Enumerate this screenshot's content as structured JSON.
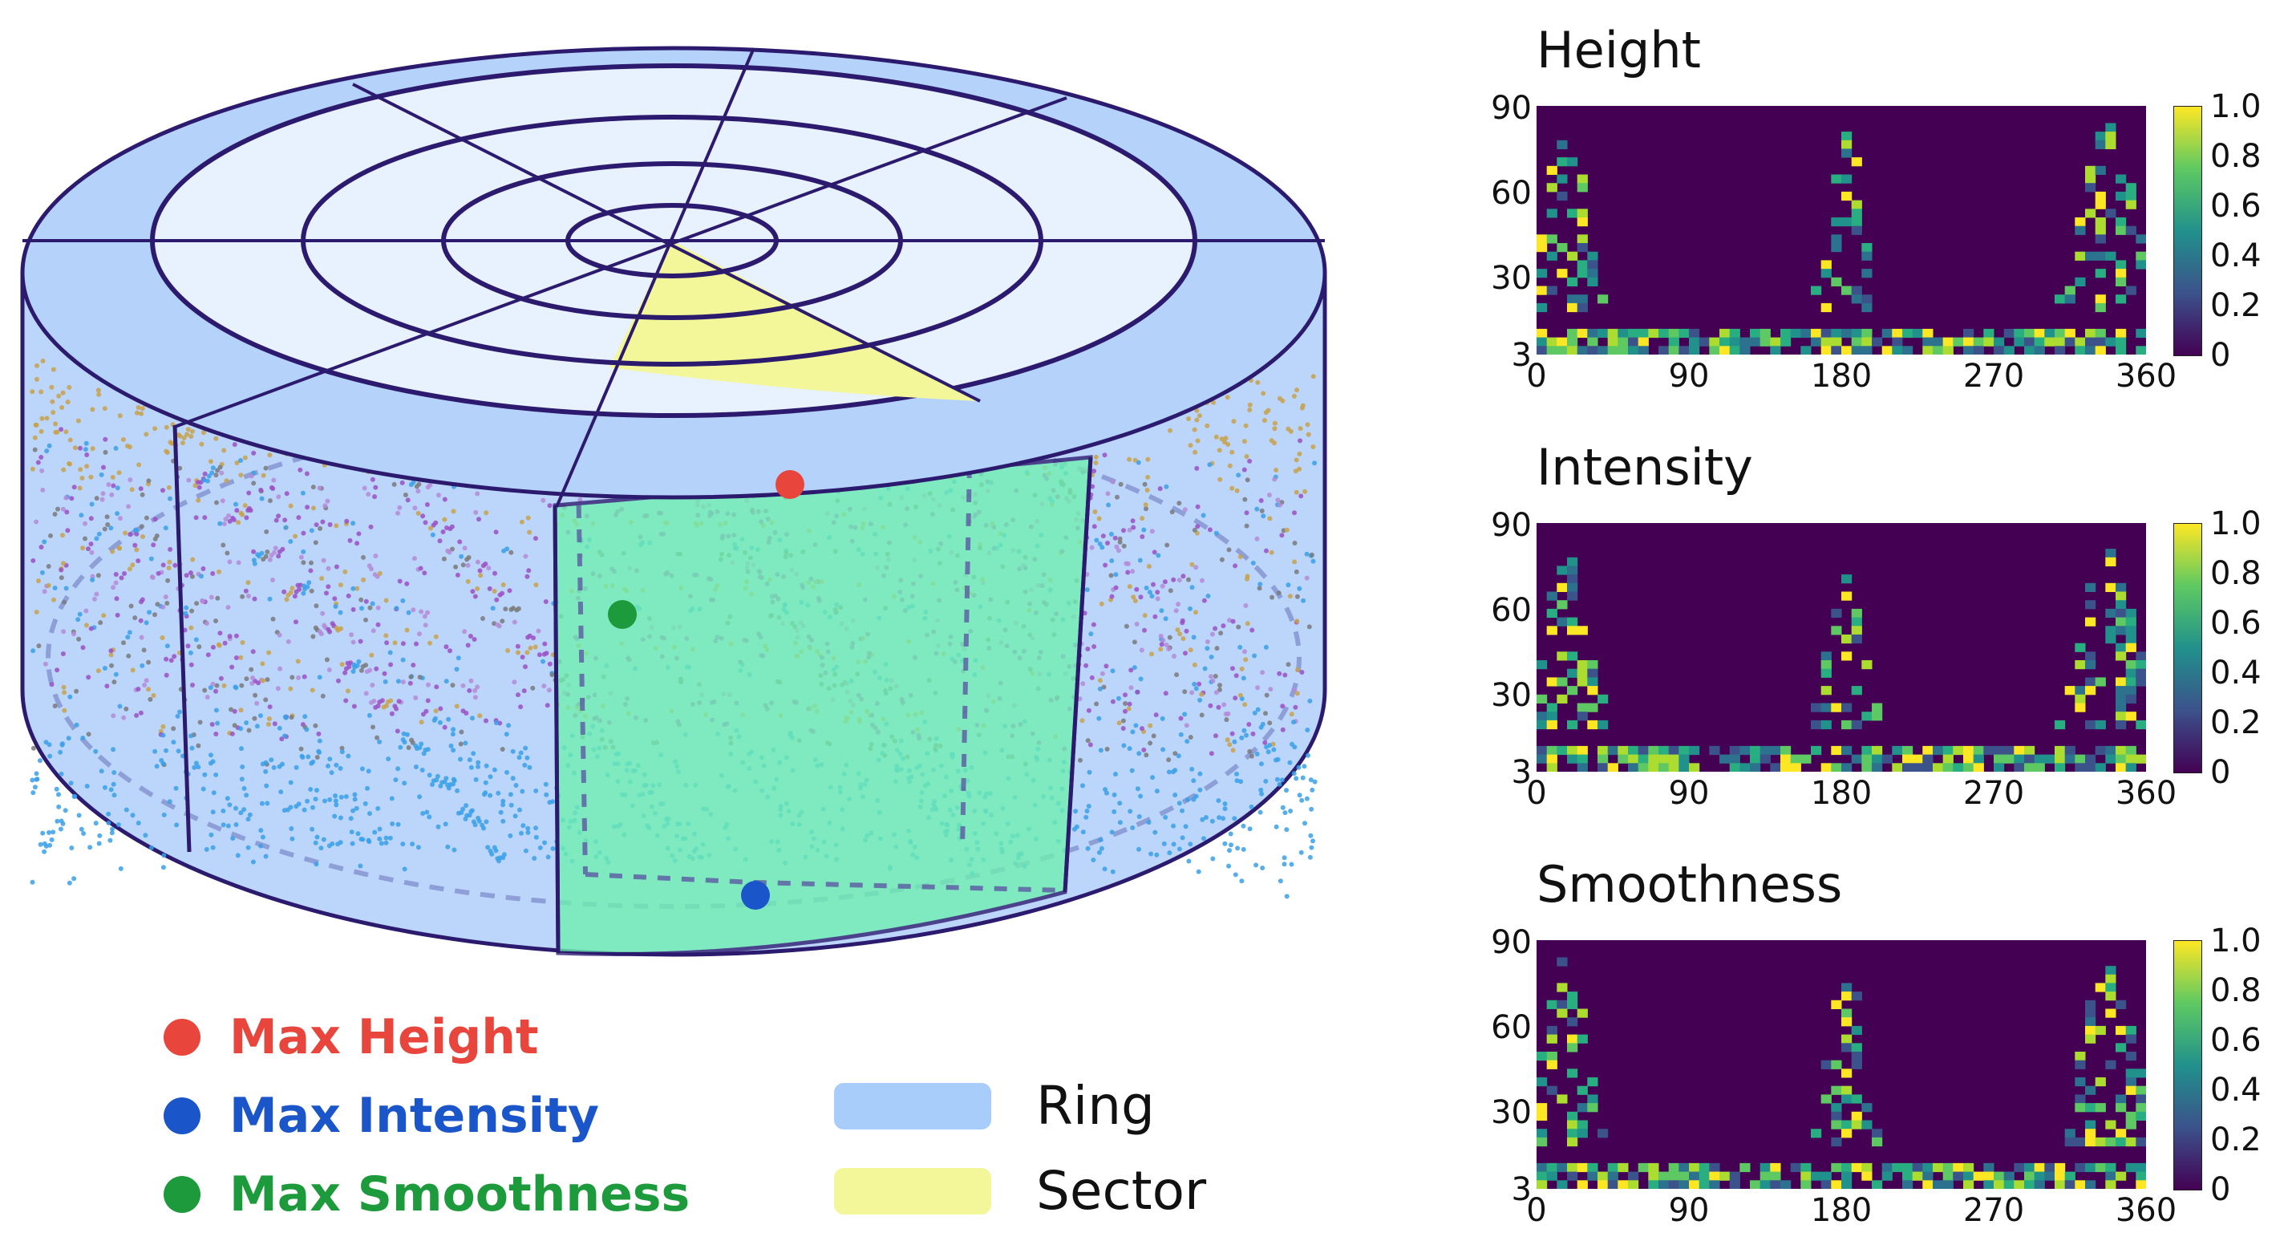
{
  "legend": {
    "max_height": {
      "label": "Max Height",
      "color": "#e8453c"
    },
    "max_intensity": {
      "label": "Max Intensity",
      "color": "#1a56c9"
    },
    "max_smoothness": {
      "label": "Max Smoothness",
      "color": "#1d9a3c"
    },
    "ring": {
      "label": "Ring",
      "color": "#a9cdfb"
    },
    "sector": {
      "label": "Sector",
      "color": "#f3f799"
    }
  },
  "heatmaps": [
    {
      "title": "Height"
    },
    {
      "title": "Intensity"
    },
    {
      "title": "Smoothness"
    }
  ],
  "axes": {
    "y_ticks": [
      "90",
      "60",
      "30",
      "3"
    ],
    "x_ticks": [
      "0",
      "90",
      "180",
      "270",
      "360"
    ],
    "colorbar_ticks": [
      "1.0",
      "0.8",
      "0.6",
      "0.4",
      "0.2",
      "0"
    ]
  },
  "colors": {
    "cylinder_side": "#bcd6fb",
    "cylinder_top": "#b5d2fb",
    "inner_disc": "#e8f1fe",
    "sector_side": "#6ff0b0",
    "outline": "#2b1a6e"
  }
}
